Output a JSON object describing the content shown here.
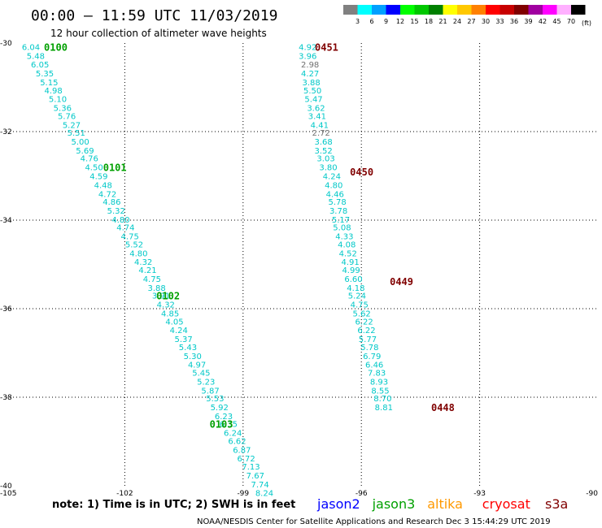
{
  "header": {
    "title": "00:00 – 11:59 UTC 11/03/2019",
    "subtitle": "12 hour collection of altimeter wave heights"
  },
  "colorbar": {
    "labels": [
      "3",
      "6",
      "9",
      "12",
      "15",
      "18",
      "21",
      "24",
      "27",
      "30",
      "33",
      "36",
      "39",
      "42",
      "45",
      "70"
    ],
    "unit": "(ft)",
    "colors": [
      "#808080",
      "#00ffff",
      "#00a0ff",
      "#0000ff",
      "#00ff00",
      "#00c800",
      "#008000",
      "#ffff00",
      "#ffc800",
      "#ff8000",
      "#ff0000",
      "#c80000",
      "#800000",
      "#a000a0",
      "#ff00ff",
      "#ffb0ff",
      "#000000"
    ]
  },
  "footer": {
    "note": "note:  1) Time is in UTC;  2) SWH is in feet",
    "credit": "NOAA/NESDIS Center for Satellite Applications and Research    Dec  3 15:44:29 UTC 2019",
    "legend": [
      {
        "name": "jason2",
        "color": "#0000ff"
      },
      {
        "name": "jason3",
        "color": "#00a000"
      },
      {
        "name": "altika",
        "color": "#ff9900"
      },
      {
        "name": "cryosat",
        "color": "#ff0000"
      },
      {
        "name": "s3a",
        "color": "#800000"
      }
    ]
  },
  "chart_data": {
    "type": "scatter",
    "xlim": [
      -105,
      -90
    ],
    "ylim": [
      -40,
      -30
    ],
    "x_ticks": [
      -105,
      -102,
      -99,
      -96,
      -93,
      -90
    ],
    "y_ticks": [
      -30,
      -32,
      -34,
      -36,
      -38,
      -40
    ],
    "grid": true,
    "tracks": [
      {
        "name": "jason3",
        "color": "#00c8c8",
        "label_color": "#00a000",
        "points": [
          {
            "lon": -104.61,
            "lat": -30.08,
            "v": "6.04"
          },
          {
            "lon": -104.49,
            "lat": -30.28,
            "v": "5.48"
          },
          {
            "lon": -104.38,
            "lat": -30.48,
            "v": "6.05"
          },
          {
            "lon": -104.26,
            "lat": -30.68,
            "v": "5.35"
          },
          {
            "lon": -104.15,
            "lat": -30.88,
            "v": "5.15"
          },
          {
            "lon": -104.04,
            "lat": -31.06,
            "v": "4.98"
          },
          {
            "lon": -103.93,
            "lat": -31.26,
            "v": "5.10"
          },
          {
            "lon": -103.81,
            "lat": -31.46,
            "v": "5.36"
          },
          {
            "lon": -103.7,
            "lat": -31.64,
            "v": "5.76"
          },
          {
            "lon": -103.58,
            "lat": -31.84,
            "v": "5.27"
          },
          {
            "lon": -103.46,
            "lat": -32.02,
            "v": "5.51"
          },
          {
            "lon": -103.36,
            "lat": -32.22,
            "v": "5.00"
          },
          {
            "lon": -103.24,
            "lat": -32.42,
            "v": "5.69"
          },
          {
            "lon": -103.13,
            "lat": -32.6,
            "v": "4.76"
          },
          {
            "lon": -103.01,
            "lat": -32.8,
            "v": "4.50"
          },
          {
            "lon": -102.89,
            "lat": -33.0,
            "v": "4.59"
          },
          {
            "lon": -102.78,
            "lat": -33.2,
            "v": "4.48"
          },
          {
            "lon": -102.67,
            "lat": -33.4,
            "v": "4.72"
          },
          {
            "lon": -102.56,
            "lat": -33.58,
            "v": "4.86"
          },
          {
            "lon": -102.45,
            "lat": -33.78,
            "v": "5.32"
          },
          {
            "lon": -102.33,
            "lat": -33.98,
            "v": "4.80"
          },
          {
            "lon": -102.21,
            "lat": -34.16,
            "v": "4.74"
          },
          {
            "lon": -102.1,
            "lat": -34.36,
            "v": "4.75"
          },
          {
            "lon": -101.99,
            "lat": -34.54,
            "v": "5.52"
          },
          {
            "lon": -101.88,
            "lat": -34.74,
            "v": "4.80"
          },
          {
            "lon": -101.76,
            "lat": -34.94,
            "v": "4.32"
          },
          {
            "lon": -101.65,
            "lat": -35.12,
            "v": "4.21"
          },
          {
            "lon": -101.54,
            "lat": -35.32,
            "v": "4.75"
          },
          {
            "lon": -101.42,
            "lat": -35.52,
            "v": "3.88"
          },
          {
            "lon": -101.31,
            "lat": -35.7,
            "v": "3.91"
          },
          {
            "lon": -101.19,
            "lat": -35.9,
            "v": "4.32"
          },
          {
            "lon": -101.08,
            "lat": -36.1,
            "v": "4.85"
          },
          {
            "lon": -100.97,
            "lat": -36.28,
            "v": "4.05"
          },
          {
            "lon": -100.86,
            "lat": -36.48,
            "v": "4.24"
          },
          {
            "lon": -100.74,
            "lat": -36.68,
            "v": "5.37"
          },
          {
            "lon": -100.63,
            "lat": -36.86,
            "v": "5.43"
          },
          {
            "lon": -100.51,
            "lat": -37.06,
            "v": "5.30"
          },
          {
            "lon": -100.4,
            "lat": -37.26,
            "v": "4.97"
          },
          {
            "lon": -100.29,
            "lat": -37.44,
            "v": "5.45"
          },
          {
            "lon": -100.17,
            "lat": -37.64,
            "v": "5.23"
          },
          {
            "lon": -100.06,
            "lat": -37.84,
            "v": "5.87"
          },
          {
            "lon": -99.94,
            "lat": -38.02,
            "v": "5.53"
          },
          {
            "lon": -99.83,
            "lat": -38.22,
            "v": "5.92"
          },
          {
            "lon": -99.72,
            "lat": -38.42,
            "v": "6.23"
          },
          {
            "lon": -99.6,
            "lat": -38.6,
            "v": "6.35"
          },
          {
            "lon": -99.49,
            "lat": -38.8,
            "v": "6.24"
          },
          {
            "lon": -99.38,
            "lat": -38.98,
            "v": "6.62"
          },
          {
            "lon": -99.26,
            "lat": -39.18,
            "v": "6.87"
          },
          {
            "lon": -99.15,
            "lat": -39.38,
            "v": "6.72"
          },
          {
            "lon": -99.03,
            "lat": -39.56,
            "v": "7.13"
          },
          {
            "lon": -98.92,
            "lat": -39.76,
            "v": "7.67"
          },
          {
            "lon": -98.8,
            "lat": -39.96,
            "v": "7.74"
          },
          {
            "lon": -98.69,
            "lat": -40.16,
            "v": "8.24"
          }
        ],
        "time_labels": [
          {
            "lon": -104.05,
            "lat": -30.08,
            "text": "0100"
          },
          {
            "lon": -102.55,
            "lat": -32.8,
            "text": "0101"
          },
          {
            "lon": -101.2,
            "lat": -35.7,
            "text": "0102"
          },
          {
            "lon": -99.85,
            "lat": -38.6,
            "text": "0103"
          }
        ]
      },
      {
        "name": "s3a",
        "color": "#00c8c8",
        "label_color": "#800000",
        "points": [
          {
            "lon": -97.59,
            "lat": -30.08,
            "v": "4.92",
            "c": "#00c8c8"
          },
          {
            "lon": -97.59,
            "lat": -30.28,
            "v": "3.96",
            "c": "#00c8c8"
          },
          {
            "lon": -97.53,
            "lat": -30.48,
            "v": "2.98",
            "c": "#707070"
          },
          {
            "lon": -97.53,
            "lat": -30.68,
            "v": "4.27",
            "c": "#00c8c8"
          },
          {
            "lon": -97.5,
            "lat": -30.88,
            "v": "3.88",
            "c": "#00c8c8"
          },
          {
            "lon": -97.47,
            "lat": -31.06,
            "v": "5.50",
            "c": "#00c8c8"
          },
          {
            "lon": -97.44,
            "lat": -31.26,
            "v": "5.47",
            "c": "#00c8c8"
          },
          {
            "lon": -97.38,
            "lat": -31.46,
            "v": "3.62",
            "c": "#00c8c8"
          },
          {
            "lon": -97.35,
            "lat": -31.64,
            "v": "3.41",
            "c": "#00c8c8"
          },
          {
            "lon": -97.29,
            "lat": -31.84,
            "v": "4.41",
            "c": "#00c8c8"
          },
          {
            "lon": -97.25,
            "lat": -32.02,
            "v": "2.72",
            "c": "#707070"
          },
          {
            "lon": -97.19,
            "lat": -32.22,
            "v": "3.68",
            "c": "#00c8c8"
          },
          {
            "lon": -97.19,
            "lat": -32.42,
            "v": "3.52",
            "c": "#00c8c8"
          },
          {
            "lon": -97.13,
            "lat": -32.6,
            "v": "3.03",
            "c": "#00c8c8"
          },
          {
            "lon": -97.07,
            "lat": -32.8,
            "v": "3.80",
            "c": "#00c8c8"
          },
          {
            "lon": -96.98,
            "lat": -33.0,
            "v": "4.24",
            "c": "#00c8c8"
          },
          {
            "lon": -96.93,
            "lat": -33.2,
            "v": "4.80",
            "c": "#00c8c8"
          },
          {
            "lon": -96.9,
            "lat": -33.4,
            "v": "4.46",
            "c": "#00c8c8"
          },
          {
            "lon": -96.84,
            "lat": -33.58,
            "v": "5.78",
            "c": "#00c8c8"
          },
          {
            "lon": -96.81,
            "lat": -33.78,
            "v": "3.78",
            "c": "#00c8c8"
          },
          {
            "lon": -96.75,
            "lat": -33.98,
            "v": "5.17",
            "c": "#00c8c8"
          },
          {
            "lon": -96.72,
            "lat": -34.16,
            "v": "5.08",
            "c": "#00c8c8"
          },
          {
            "lon": -96.66,
            "lat": -34.36,
            "v": "4.33",
            "c": "#00c8c8"
          },
          {
            "lon": -96.6,
            "lat": -34.54,
            "v": "4.08",
            "c": "#00c8c8"
          },
          {
            "lon": -96.57,
            "lat": -34.74,
            "v": "4.52",
            "c": "#00c8c8"
          },
          {
            "lon": -96.51,
            "lat": -34.94,
            "v": "4.91",
            "c": "#00c8c8"
          },
          {
            "lon": -96.49,
            "lat": -35.12,
            "v": "4.99",
            "c": "#00c8c8"
          },
          {
            "lon": -96.43,
            "lat": -35.32,
            "v": "6.60",
            "c": "#00c8c8"
          },
          {
            "lon": -96.37,
            "lat": -35.52,
            "v": "4.18",
            "c": "#00c8c8"
          },
          {
            "lon": -96.34,
            "lat": -35.7,
            "v": "5.24",
            "c": "#00c8c8"
          },
          {
            "lon": -96.28,
            "lat": -35.9,
            "v": "4.75",
            "c": "#00c8c8"
          },
          {
            "lon": -96.22,
            "lat": -36.1,
            "v": "5.62",
            "c": "#00c8c8"
          },
          {
            "lon": -96.16,
            "lat": -36.28,
            "v": "6.22",
            "c": "#00c8c8"
          },
          {
            "lon": -96.1,
            "lat": -36.48,
            "v": "6.22",
            "c": "#00c8c8"
          },
          {
            "lon": -96.07,
            "lat": -36.68,
            "v": "5.77",
            "c": "#00c8c8"
          },
          {
            "lon": -96.02,
            "lat": -36.86,
            "v": "5.78",
            "c": "#00c8c8"
          },
          {
            "lon": -95.96,
            "lat": -37.06,
            "v": "6.79",
            "c": "#00c8c8"
          },
          {
            "lon": -95.9,
            "lat": -37.26,
            "v": "6.46",
            "c": "#00c8c8"
          },
          {
            "lon": -95.84,
            "lat": -37.44,
            "v": "7.83",
            "c": "#00c8c8"
          },
          {
            "lon": -95.78,
            "lat": -37.64,
            "v": "8.93",
            "c": "#00c8c8"
          },
          {
            "lon": -95.75,
            "lat": -37.84,
            "v": "8.55",
            "c": "#00c8c8"
          },
          {
            "lon": -95.69,
            "lat": -38.02,
            "v": "8.70",
            "c": "#00c8c8"
          },
          {
            "lon": -95.66,
            "lat": -38.22,
            "v": "8.81",
            "c": "#00c8c8"
          }
        ],
        "time_labels": [
          {
            "lon": -97.18,
            "lat": -30.08,
            "text": "0451"
          },
          {
            "lon": -96.29,
            "lat": -32.9,
            "text": "0450"
          },
          {
            "lon": -95.28,
            "lat": -35.38,
            "text": "0449"
          },
          {
            "lon": -94.23,
            "lat": -38.22,
            "text": "0448"
          }
        ]
      }
    ]
  }
}
